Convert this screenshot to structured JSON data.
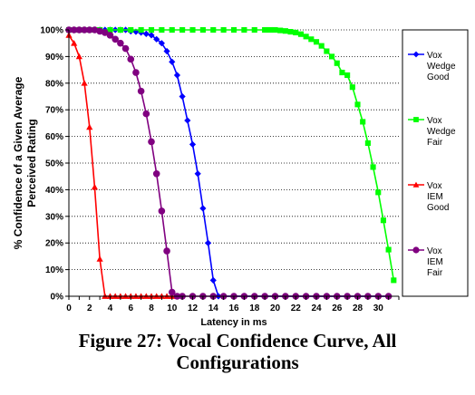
{
  "chart_data": {
    "type": "line",
    "title": "",
    "xlabel": "Latency in ms",
    "ylabel": "% Confidence of a Given Average Perceived Rating",
    "xlim": [
      0,
      32
    ],
    "ylim": [
      0,
      100
    ],
    "x_ticks": [
      "0",
      "2",
      "4",
      "6",
      "8",
      "10",
      "12",
      "14",
      "16",
      "18",
      "20",
      "22",
      "24",
      "26",
      "28",
      "30"
    ],
    "y_ticks": [
      "0%",
      "10%",
      "20%",
      "30%",
      "40%",
      "50%",
      "60%",
      "70%",
      "80%",
      "90%",
      "100%"
    ],
    "grid": true,
    "legend_position": "right",
    "series": [
      {
        "name": "Vox Wedge Good",
        "color": "#0000FF",
        "marker": "diamond",
        "points": [
          [
            0,
            100
          ],
          [
            0.5,
            100
          ],
          [
            1,
            100
          ],
          [
            1.5,
            100
          ],
          [
            2,
            100
          ],
          [
            2.5,
            100
          ],
          [
            3,
            100
          ],
          [
            3.5,
            100
          ],
          [
            4,
            100
          ],
          [
            4.5,
            100
          ],
          [
            5,
            100
          ],
          [
            5.5,
            100
          ],
          [
            6,
            99.5
          ],
          [
            6.5,
            99.3
          ],
          [
            7,
            99
          ],
          [
            7.5,
            98.5
          ],
          [
            8,
            98
          ],
          [
            8.5,
            96.5
          ],
          [
            9,
            95
          ],
          [
            9.5,
            92
          ],
          [
            10,
            88
          ],
          [
            10.5,
            83
          ],
          [
            11,
            75
          ],
          [
            11.5,
            66
          ],
          [
            12,
            57
          ],
          [
            12.5,
            46
          ],
          [
            13,
            33
          ],
          [
            13.5,
            20
          ],
          [
            14,
            6
          ],
          [
            14.5,
            0
          ],
          [
            15,
            0
          ],
          [
            16,
            0
          ],
          [
            17,
            0
          ],
          [
            18,
            0
          ],
          [
            19,
            0
          ],
          [
            20,
            0
          ],
          [
            21,
            0
          ],
          [
            22,
            0
          ],
          [
            23,
            0
          ],
          [
            24,
            0
          ],
          [
            25,
            0
          ],
          [
            26,
            0
          ],
          [
            27,
            0
          ],
          [
            28,
            0
          ],
          [
            29,
            0
          ],
          [
            30,
            0
          ],
          [
            31,
            0
          ]
        ]
      },
      {
        "name": "Vox Wedge Fair",
        "color": "#00FF00",
        "marker": "square",
        "points": [
          [
            0,
            100
          ],
          [
            1,
            100
          ],
          [
            2,
            100
          ],
          [
            3,
            100
          ],
          [
            4,
            100
          ],
          [
            5,
            100
          ],
          [
            6,
            100
          ],
          [
            7,
            100
          ],
          [
            8,
            100
          ],
          [
            9,
            100
          ],
          [
            10,
            100
          ],
          [
            11,
            100
          ],
          [
            12,
            100
          ],
          [
            13,
            100
          ],
          [
            14,
            100
          ],
          [
            15,
            100
          ],
          [
            16,
            100
          ],
          [
            17,
            100
          ],
          [
            18,
            100
          ],
          [
            19,
            100
          ],
          [
            19.5,
            100
          ],
          [
            20,
            100
          ],
          [
            20.5,
            99.8
          ],
          [
            21,
            99.6
          ],
          [
            21.5,
            99.3
          ],
          [
            22,
            99
          ],
          [
            22.5,
            98.4
          ],
          [
            23,
            97.5
          ],
          [
            23.5,
            96.5
          ],
          [
            24,
            95.5
          ],
          [
            24.5,
            94
          ],
          [
            25,
            92
          ],
          [
            25.5,
            90
          ],
          [
            26,
            87.5
          ],
          [
            26.5,
            84
          ],
          [
            27,
            83
          ],
          [
            27.5,
            78.5
          ],
          [
            28,
            72
          ],
          [
            28.5,
            65.5
          ],
          [
            29,
            57.5
          ],
          [
            29.5,
            48.5
          ],
          [
            30,
            39
          ],
          [
            30.5,
            28.5
          ],
          [
            31,
            17.5
          ],
          [
            31.5,
            6
          ]
        ]
      },
      {
        "name": "Vox IEM Good",
        "color": "#FF0000",
        "marker": "triangle",
        "points": [
          [
            0,
            98
          ],
          [
            0.5,
            95
          ],
          [
            1,
            90
          ],
          [
            1.5,
            80
          ],
          [
            2,
            63.5
          ],
          [
            2.5,
            41
          ],
          [
            3,
            14
          ],
          [
            3.5,
            0
          ],
          [
            4,
            0
          ],
          [
            4.5,
            0
          ],
          [
            5,
            0
          ],
          [
            5.5,
            0
          ],
          [
            6,
            0
          ],
          [
            6.5,
            0
          ],
          [
            7,
            0
          ],
          [
            7.5,
            0
          ],
          [
            8,
            0
          ],
          [
            8.5,
            0
          ],
          [
            9,
            0
          ],
          [
            9.5,
            0
          ],
          [
            10,
            0
          ]
        ]
      },
      {
        "name": "Vox IEM Fair",
        "color": "#800080",
        "marker": "circle",
        "points": [
          [
            0,
            100
          ],
          [
            0.5,
            100
          ],
          [
            1,
            100
          ],
          [
            1.5,
            100
          ],
          [
            2,
            100
          ],
          [
            2.5,
            100
          ],
          [
            3,
            99.5
          ],
          [
            3.5,
            99
          ],
          [
            4,
            98
          ],
          [
            4.5,
            96.5
          ],
          [
            5,
            95
          ],
          [
            5.5,
            93
          ],
          [
            6,
            89
          ],
          [
            6.5,
            84
          ],
          [
            7,
            77
          ],
          [
            7.5,
            68.5
          ],
          [
            8,
            58
          ],
          [
            8.5,
            46
          ],
          [
            9,
            32
          ],
          [
            9.5,
            17
          ],
          [
            10,
            1.5
          ],
          [
            10.5,
            0
          ],
          [
            11,
            0
          ],
          [
            12,
            0
          ],
          [
            13,
            0
          ],
          [
            14,
            0
          ],
          [
            15,
            0
          ],
          [
            16,
            0
          ],
          [
            17,
            0
          ],
          [
            18,
            0
          ],
          [
            19,
            0
          ],
          [
            20,
            0
          ],
          [
            21,
            0
          ],
          [
            22,
            0
          ],
          [
            23,
            0
          ],
          [
            24,
            0
          ],
          [
            25,
            0
          ],
          [
            26,
            0
          ],
          [
            27,
            0
          ],
          [
            28,
            0
          ],
          [
            29,
            0
          ],
          [
            30,
            0
          ],
          [
            31,
            0
          ]
        ]
      }
    ],
    "legend": [
      {
        "lines": [
          "Vox",
          "Wedge",
          "Good"
        ]
      },
      {
        "lines": [
          "Vox",
          "Wedge",
          "Fair"
        ]
      },
      {
        "lines": [
          "Vox",
          "IEM",
          "Good"
        ]
      },
      {
        "lines": [
          "Vox",
          "IEM",
          "Fair"
        ]
      }
    ],
    "ylabel_lines": [
      "% Confidence of a Given Average",
      "Perceived Rating"
    ]
  },
  "caption": {
    "line1": "Figure 27: Vocal Confidence Curve, All",
    "line2": "Configurations"
  }
}
